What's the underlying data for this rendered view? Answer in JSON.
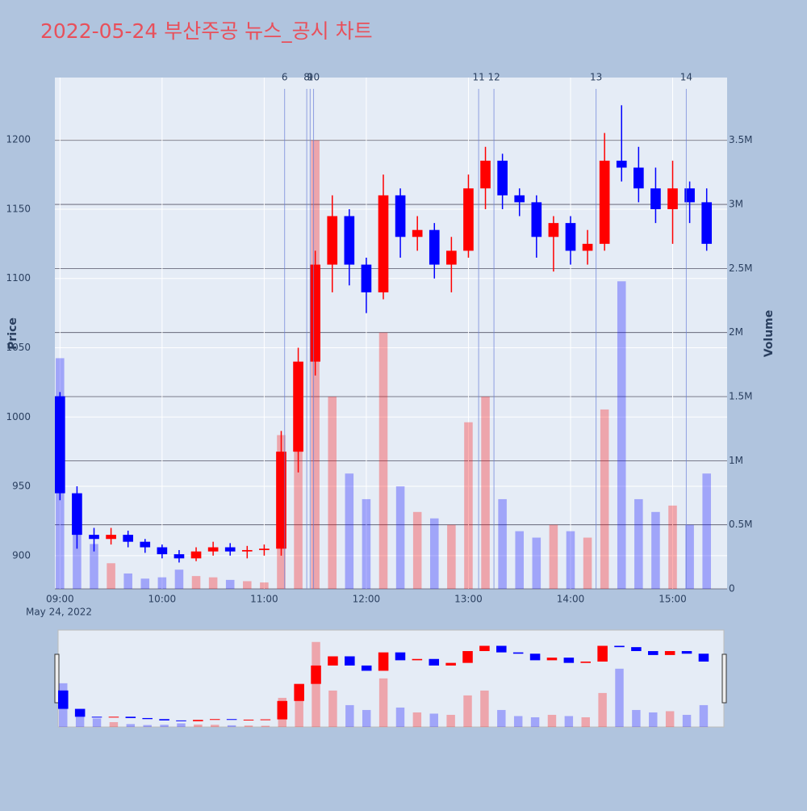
{
  "chart_data": {
    "type": "candlestick",
    "title": "2022-05-24 부산주공 뉴스_공시 차트",
    "y_label": "Price",
    "y2_label": "Volume",
    "x": [
      "09:00",
      "09:10",
      "09:20",
      "09:30",
      "09:40",
      "09:50",
      "10:00",
      "10:10",
      "10:20",
      "10:30",
      "10:40",
      "10:50",
      "11:00",
      "11:10",
      "11:20",
      "11:30",
      "11:40",
      "11:50",
      "12:00",
      "12:10",
      "12:20",
      "12:30",
      "12:40",
      "12:50",
      "13:00",
      "13:10",
      "13:20",
      "13:30",
      "13:40",
      "13:50",
      "14:00",
      "14:10",
      "14:20",
      "14:30",
      "14:40",
      "14:50",
      "15:00",
      "15:10",
      "15:20"
    ],
    "open": [
      1015,
      945,
      915,
      912,
      915,
      910,
      906,
      901,
      898,
      903,
      906,
      903,
      904,
      905,
      975,
      1040,
      1110,
      1145,
      1110,
      1090,
      1160,
      1130,
      1135,
      1110,
      1120,
      1165,
      1185,
      1160,
      1155,
      1130,
      1140,
      1120,
      1125,
      1185,
      1180,
      1165,
      1150,
      1165,
      1155
    ],
    "high": [
      1018,
      950,
      920,
      920,
      918,
      912,
      908,
      904,
      906,
      910,
      909,
      907,
      908,
      990,
      1050,
      1120,
      1160,
      1150,
      1115,
      1175,
      1165,
      1145,
      1140,
      1130,
      1175,
      1195,
      1190,
      1165,
      1160,
      1145,
      1145,
      1135,
      1205,
      1225,
      1195,
      1180,
      1185,
      1170,
      1165
    ],
    "low": [
      940,
      905,
      903,
      908,
      906,
      902,
      898,
      895,
      896,
      900,
      900,
      898,
      900,
      900,
      960,
      1030,
      1090,
      1095,
      1075,
      1085,
      1115,
      1120,
      1100,
      1090,
      1115,
      1150,
      1150,
      1145,
      1115,
      1105,
      1110,
      1110,
      1120,
      1170,
      1155,
      1140,
      1125,
      1140,
      1120
    ],
    "close": [
      945,
      915,
      912,
      915,
      910,
      906,
      901,
      898,
      903,
      906,
      903,
      904,
      905,
      975,
      1040,
      1110,
      1145,
      1110,
      1090,
      1160,
      1130,
      1135,
      1110,
      1120,
      1165,
      1185,
      1160,
      1155,
      1130,
      1140,
      1120,
      1125,
      1185,
      1180,
      1165,
      1150,
      1165,
      1155,
      1125
    ],
    "volume": [
      1800000,
      600000,
      350000,
      200000,
      120000,
      80000,
      90000,
      150000,
      100000,
      90000,
      70000,
      60000,
      50000,
      1200000,
      1600000,
      3500000,
      1500000,
      900000,
      700000,
      2000000,
      800000,
      600000,
      550000,
      500000,
      1300000,
      1500000,
      700000,
      450000,
      400000,
      500000,
      450000,
      400000,
      1400000,
      2400000,
      700000,
      600000,
      650000,
      500000,
      900000
    ],
    "up_color": "#ff0000",
    "down_color": "#0000ff",
    "xlim": [
      "08:57",
      "15:32"
    ],
    "xticks": [
      "09:00",
      "10:00",
      "11:00",
      "12:00",
      "13:00",
      "14:00",
      "15:00"
    ],
    "x_date_label": "May 24, 2022",
    "ylim": [
      876,
      1245
    ],
    "yticks": [
      900,
      950,
      1000,
      1050,
      1100,
      1150,
      1200
    ],
    "y2lim": [
      0,
      3990000
    ],
    "y2ticks": [
      0,
      {
        "value": 500000,
        "label": "0.5M"
      },
      {
        "value": 1000000,
        "label": "1M"
      },
      {
        "value": 1500000,
        "label": "1.5M"
      },
      {
        "value": 2000000,
        "label": "2M"
      },
      {
        "value": 2500000,
        "label": "2.5M"
      },
      {
        "value": 3000000,
        "label": "3M"
      },
      {
        "value": 3500000,
        "label": "3.5M"
      }
    ],
    "grid": true,
    "annotations": [
      {
        "x": "11:12",
        "label": "6"
      },
      {
        "x": "11:25",
        "label": "8"
      },
      {
        "x": "11:27",
        "label": "9"
      },
      {
        "x": "11:29",
        "label": "10"
      },
      {
        "x": "13:06",
        "label": "11"
      },
      {
        "x": "13:15",
        "label": "12"
      },
      {
        "x": "14:15",
        "label": "13"
      },
      {
        "x": "15:08",
        "label": "14"
      }
    ]
  }
}
